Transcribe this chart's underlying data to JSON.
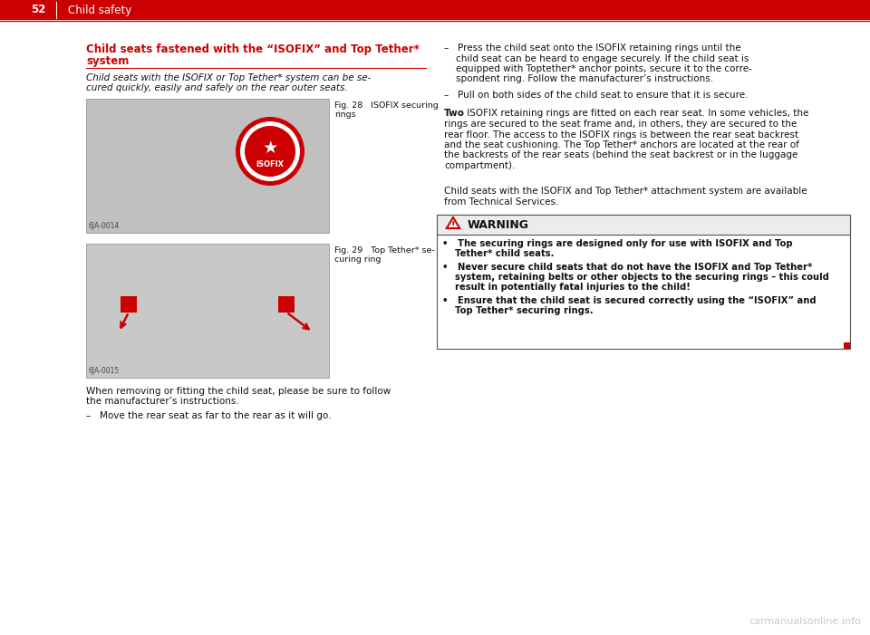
{
  "bg_color": "#ffffff",
  "header_bar_color": "#cc0000",
  "header_page_num": "52",
  "header_title": "Child safety",
  "header_line_color": "#cc0000",
  "section_title_line1": "Child seats fastened with the “ISOFIX” and Top Tether*",
  "section_title_line2": "system",
  "section_title_color": "#cc0000",
  "italic_text_line1": "Child seats with the ISOFIX or Top Tether* system can be se-",
  "italic_text_line2": "cured quickly, easily and safely on the rear outer seats.",
  "fig28_label_line1": "Fig. 28   ISOFIX securing",
  "fig28_label_line2": "rings",
  "fig29_label_line1": "Fig. 29   Top Tether* se-",
  "fig29_label_line2": "curing ring",
  "fig28_code": "6JA-0014",
  "fig29_code": "6JA-0015",
  "para_below_figs_line1": "When removing or fitting the child seat, please be sure to follow",
  "para_below_figs_line2": "the manufacturer’s instructions.",
  "bullet_left": "–   Move the rear seat as far to the rear as it will go.",
  "rbullet1_line1": "–   Press the child seat onto the ISOFIX retaining rings until the",
  "rbullet1_line2": "    child seat can be heard to engage securely. If the child seat is",
  "rbullet1_line3": "    equipped with Toptether* anchor points, secure it to the corre-",
  "rbullet1_line4": "    spondent ring. Follow the manufacturer’s instructions.",
  "rbullet2": "–   Pull on both sides of the child seat to ensure that it is secure.",
  "rpara1_bold": "Two",
  "rpara1_rest_line1": " ISOFIX retaining rings are fitted on each rear seat. In some vehicles, the",
  "rpara1_rest_line2": "rings are secured to the seat frame and, in others, they are secured to the",
  "rpara1_rest_line3": "rear floor. The access to the ISOFIX rings is between the rear seat backrest",
  "rpara1_rest_line4": "and the seat cushioning. The Top Tether* anchors are located at the rear of",
  "rpara1_rest_line5": "the backrests of the rear seats (behind the seat backrest or in the luggage",
  "rpara1_rest_line6": "compartment).",
  "rpara2_line1": "Child seats with the ISOFIX and Top Tether* attachment system are available",
  "rpara2_line2": "from Technical Services.",
  "warn_title": "WARNING",
  "warn_b1_line1": "•   The securing rings are designed only for use with ISOFIX and Top",
  "warn_b1_line2": "    Tether* child seats.",
  "warn_b2_line1": "•   Never secure child seats that do not have the ISOFIX and Top Tether*",
  "warn_b2_line2": "    system, retaining belts or other objects to the securing rings – this could",
  "warn_b2_line3": "    result in potentially fatal injuries to the child!",
  "warn_b3_line1": "•   Ensure that the child seat is secured correctly using the “ISOFIX” and",
  "warn_b3_line2": "    Top Tether* securing rings.",
  "warn_border": "#555555",
  "red_color": "#cc0000",
  "text_color": "#111111",
  "watermark": "carmanualsonline.info",
  "watermark_color": "#bbbbbb"
}
